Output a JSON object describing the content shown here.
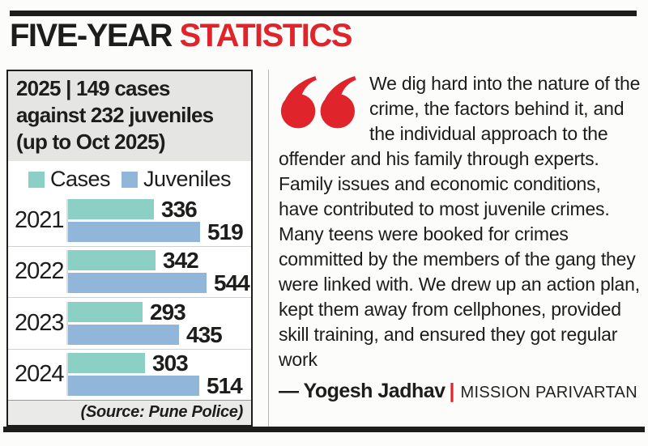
{
  "title": {
    "black": "FIVE-YEAR",
    "red": "STATISTICS"
  },
  "colors": {
    "red": "#df252b",
    "ink": "#1d1d1b",
    "cases": "#8bcfc5",
    "juveniles": "#92b5da",
    "header_bg": "#e5e5e3",
    "source_bg": "#eaeae8"
  },
  "panel": {
    "header": "2025 | 149 cases against 232 juveniles (up to Oct 2025)",
    "source": "(Source: Pune Police)"
  },
  "chart_data": {
    "type": "bar",
    "orientation": "horizontal",
    "title": "FIVE-YEAR STATISTICS",
    "categories": [
      "2021",
      "2022",
      "2023",
      "2024"
    ],
    "series": [
      {
        "name": "Cases",
        "color": "#8bcfc5",
        "values": [
          336,
          342,
          293,
          303
        ]
      },
      {
        "name": "Juveniles",
        "color": "#92b5da",
        "values": [
          519,
          544,
          435,
          514
        ]
      }
    ],
    "value_labels": true,
    "legend_position": "top",
    "xlim": [
      0,
      560
    ],
    "grid": false,
    "source": "(Source: Pune Police)"
  },
  "quote": {
    "text": "We dig hard into the nature of the crime, the factors behind it, and the individual approach to the offender and his family through experts. Family issues and economic conditions, have contributed to most juvenile crimes. Many teens were booked for crimes committed by the members of the gang they were linked with. We drew up an action plan, kept them away from cellphones, provided skill training, and ensured they got regular work",
    "author": "— Yogesh Jadhav",
    "separator": "|",
    "org": "MISSION PARIVARTAN"
  }
}
